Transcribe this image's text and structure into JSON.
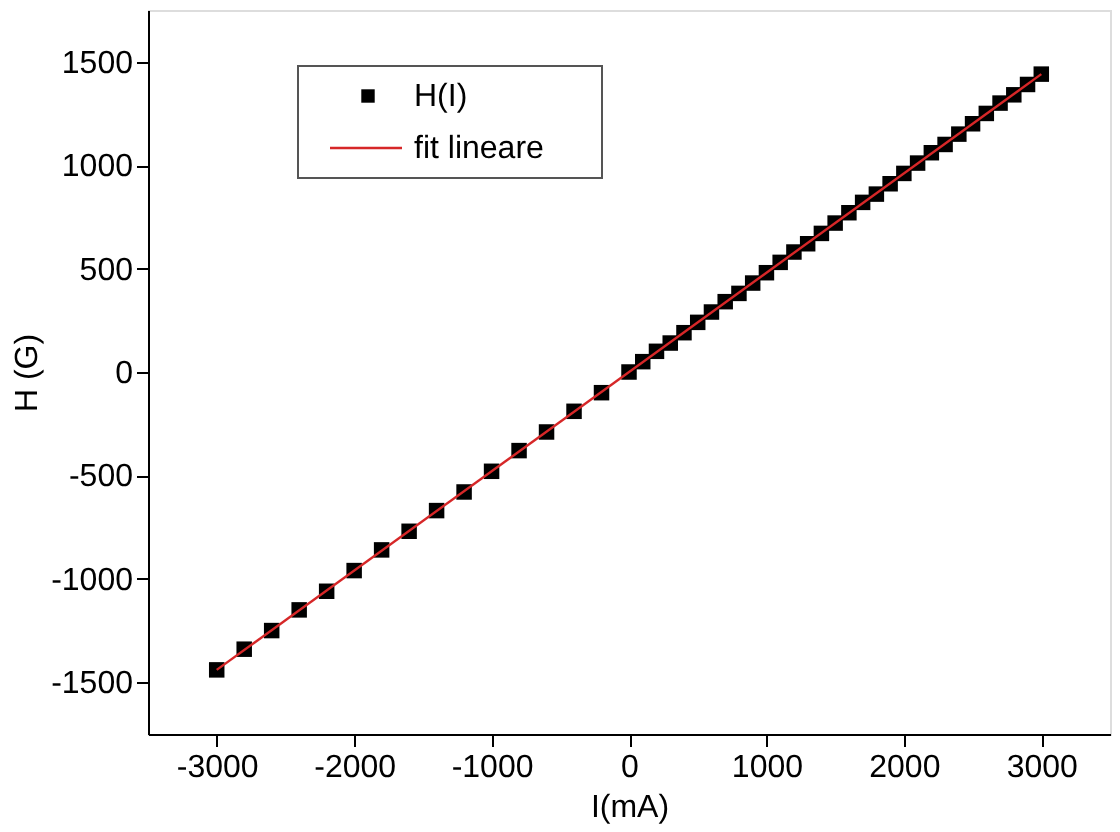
{
  "chart_data": {
    "type": "scatter",
    "xlabel": "I(mA)",
    "ylabel": "H (G)",
    "xlim": [
      -3500,
      3500
    ],
    "ylim": [
      -1750,
      1750
    ],
    "xticks": [
      -3000,
      -2000,
      -1000,
      0,
      1000,
      2000,
      3000
    ],
    "yticks": [
      -1500,
      -1000,
      -500,
      0,
      500,
      1000,
      1500
    ],
    "legend": "top left",
    "series": [
      {
        "name": "H(I)",
        "marker": "square",
        "color": "#000000",
        "x": [
          -3000,
          -2800,
          -2600,
          -2400,
          -2200,
          -2000,
          -1800,
          -1600,
          -1400,
          -1200,
          -1000,
          -800,
          -600,
          -400,
          -200,
          0,
          100,
          200,
          300,
          400,
          500,
          600,
          700,
          800,
          900,
          1000,
          1100,
          1200,
          1300,
          1400,
          1500,
          1600,
          1700,
          1800,
          1900,
          2000,
          2100,
          2200,
          2300,
          2400,
          2500,
          2600,
          2700,
          2800,
          2900,
          3000
        ],
        "values": [
          -1440,
          -1340,
          -1250,
          -1150,
          -1060,
          -960,
          -860,
          -770,
          -670,
          -580,
          -480,
          -380,
          -290,
          -190,
          -100,
          0,
          50,
          100,
          140,
          190,
          240,
          290,
          340,
          380,
          430,
          480,
          530,
          580,
          620,
          670,
          720,
          770,
          820,
          860,
          910,
          960,
          1010,
          1060,
          1100,
          1150,
          1200,
          1250,
          1300,
          1340,
          1390,
          1440
        ]
      },
      {
        "name": "fit lineare",
        "type": "line",
        "marker": "none",
        "line_style": "solid",
        "color": "#d62728",
        "x": [
          -3000,
          3000
        ],
        "values": [
          -1440,
          1440
        ]
      }
    ]
  }
}
